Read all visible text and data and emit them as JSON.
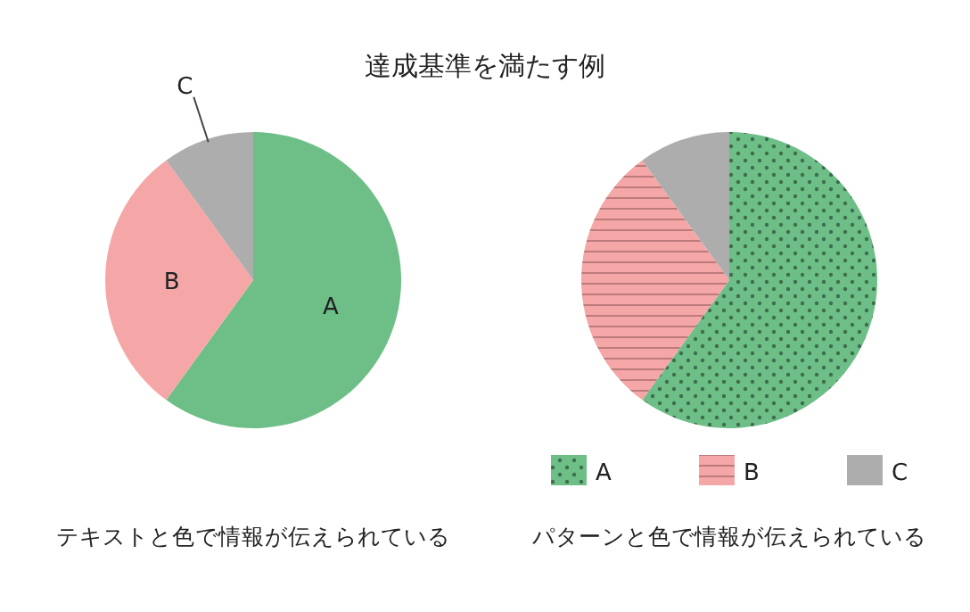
{
  "chart_data": [
    {
      "type": "pie",
      "title": "達成基準を満たす例",
      "categories": [
        "A",
        "B",
        "C"
      ],
      "values": [
        60,
        30,
        10
      ],
      "colors": [
        "#6dbf87",
        "#f4a7a6",
        "#aeadad"
      ],
      "legend": false,
      "annotations": [
        "テキストと色で情報が伝えられている"
      ]
    },
    {
      "type": "pie",
      "categories": [
        "A",
        "B",
        "C"
      ],
      "values": [
        60,
        30,
        10
      ],
      "colors": [
        "#6dbf87",
        "#f4a7a6",
        "#aeadad"
      ],
      "legend": "bottom",
      "annotations": [
        "パターンと色で情報が伝えられている"
      ]
    }
  ]
}
